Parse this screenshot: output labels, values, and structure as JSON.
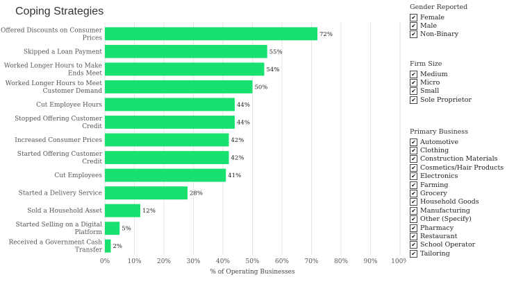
{
  "page": {
    "title": "Coping Strategies"
  },
  "colors": {
    "bar": "#19e170",
    "grid": "#e6e6e6",
    "axis_text": "#555555"
  },
  "chart_data": {
    "type": "bar",
    "orientation": "horizontal",
    "title": "Coping Strategies",
    "xlabel": "% of Operating Businesses",
    "ylabel": "",
    "xlim": [
      0,
      100
    ],
    "xticks": [
      "0%",
      "10%",
      "20%",
      "30%",
      "40%",
      "50%",
      "60%",
      "70%",
      "80%",
      "90%",
      "100%"
    ],
    "grid": true,
    "categories": [
      [
        "Offered Discounts on Consumer",
        "Prices"
      ],
      [
        "Skipped a Loan Payment"
      ],
      [
        "Worked Longer Hours to Make",
        "Ends Meet"
      ],
      [
        "Worked Longer Hours to Meet",
        "Customer Demand"
      ],
      [
        "Cut Employee Hours"
      ],
      [
        "Stopped Offering Customer",
        "Credit"
      ],
      [
        "Increased Consumer Prices"
      ],
      [
        "Started Offering Customer",
        "Credit"
      ],
      [
        "Cut Employees"
      ],
      [
        "Started a Delivery Service"
      ],
      [
        "Sold a Household Asset"
      ],
      [
        "Started Selling on a Digital",
        "Platform"
      ],
      [
        "Received a Government Cash",
        "Transfer"
      ]
    ],
    "values": [
      72,
      55,
      54,
      50,
      44,
      44,
      42,
      42,
      41,
      28,
      12,
      5,
      2
    ],
    "value_labels": [
      "72%",
      "55%",
      "54%",
      "50%",
      "44%",
      "44%",
      "42%",
      "42%",
      "41%",
      "28%",
      "12%",
      "5%",
      "2%"
    ]
  },
  "filters": {
    "gender": {
      "title": "Gender Reported",
      "items": [
        "Female",
        "Male",
        "Non-Binary"
      ]
    },
    "firm_size": {
      "title": "Firm Size",
      "items": [
        "Medium",
        "Micro",
        "Small",
        "Sole Proprietor"
      ]
    },
    "primary_business": {
      "title": "Primary Business",
      "items": [
        "Automotive",
        "Clothing",
        "Construction Materials",
        "Cosmetics/Hair Products",
        "Electronics",
        "Farming",
        "Grocery",
        "Household Goods",
        "Manufacturing",
        "Other (Specify)",
        "Pharmacy",
        "Restaurant",
        "School Operator",
        "Tailoring"
      ]
    },
    "check_glyph": "✔"
  }
}
